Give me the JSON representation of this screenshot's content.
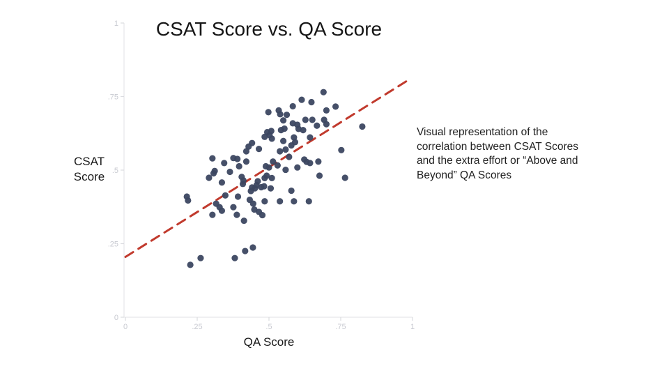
{
  "chart_data": {
    "type": "scatter",
    "title": "CSAT Score vs. QA Score",
    "xlabel": "QA Score",
    "ylabel": "CSAT Score",
    "ylabel_display": "CSAT\nScore",
    "annotation": "Visual representation of the\ncorrelation between CSAT Scores\nand the extra effort or “Above and\nBeyond” QA Scores",
    "xlim": [
      0,
      1
    ],
    "ylim": [
      0,
      1
    ],
    "grid": false,
    "legend": null,
    "x_ticks": {
      "values": [
        0,
        0.25,
        0.5,
        0.75,
        1
      ],
      "labels": [
        "0",
        ".25",
        ".5",
        ".75",
        "1"
      ]
    },
    "y_ticks": {
      "values": [
        0,
        0.25,
        0.5,
        0.75,
        1
      ],
      "labels": [
        "0",
        ".25",
        ".5",
        ".75",
        "1"
      ]
    },
    "colors": {
      "point": "#3c4761",
      "trend": "#c13a2d",
      "axis": "#e6e6ea",
      "tick": "#dadbe0",
      "tick_label": "#c8cad1"
    },
    "points": [
      [
        0.69,
        0.765
      ],
      [
        0.614,
        0.739
      ],
      [
        0.648,
        0.731
      ],
      [
        0.583,
        0.717
      ],
      [
        0.498,
        0.697
      ],
      [
        0.534,
        0.703
      ],
      [
        0.539,
        0.69
      ],
      [
        0.732,
        0.716
      ],
      [
        0.7,
        0.703
      ],
      [
        0.562,
        0.688
      ],
      [
        0.627,
        0.671
      ],
      [
        0.651,
        0.671
      ],
      [
        0.692,
        0.671
      ],
      [
        0.55,
        0.669
      ],
      [
        0.583,
        0.659
      ],
      [
        0.599,
        0.654
      ],
      [
        0.667,
        0.651
      ],
      [
        0.7,
        0.656
      ],
      [
        0.825,
        0.648
      ],
      [
        0.542,
        0.636
      ],
      [
        0.603,
        0.64
      ],
      [
        0.619,
        0.636
      ],
      [
        0.554,
        0.641
      ],
      [
        0.494,
        0.629
      ],
      [
        0.508,
        0.633
      ],
      [
        0.502,
        0.619
      ],
      [
        0.485,
        0.613
      ],
      [
        0.51,
        0.607
      ],
      [
        0.643,
        0.611
      ],
      [
        0.55,
        0.599
      ],
      [
        0.587,
        0.611
      ],
      [
        0.591,
        0.595
      ],
      [
        0.441,
        0.592
      ],
      [
        0.429,
        0.58
      ],
      [
        0.465,
        0.572
      ],
      [
        0.421,
        0.564
      ],
      [
        0.538,
        0.564
      ],
      [
        0.558,
        0.57
      ],
      [
        0.57,
        0.545
      ],
      [
        0.578,
        0.584
      ],
      [
        0.752,
        0.568
      ],
      [
        0.303,
        0.54
      ],
      [
        0.344,
        0.524
      ],
      [
        0.376,
        0.541
      ],
      [
        0.39,
        0.538
      ],
      [
        0.396,
        0.513
      ],
      [
        0.421,
        0.529
      ],
      [
        0.514,
        0.529
      ],
      [
        0.53,
        0.516
      ],
      [
        0.489,
        0.513
      ],
      [
        0.5,
        0.509
      ],
      [
        0.558,
        0.501
      ],
      [
        0.599,
        0.509
      ],
      [
        0.623,
        0.536
      ],
      [
        0.631,
        0.528
      ],
      [
        0.643,
        0.524
      ],
      [
        0.672,
        0.529
      ],
      [
        0.311,
        0.497
      ],
      [
        0.291,
        0.474
      ],
      [
        0.307,
        0.489
      ],
      [
        0.364,
        0.494
      ],
      [
        0.336,
        0.458
      ],
      [
        0.405,
        0.477
      ],
      [
        0.411,
        0.465
      ],
      [
        0.409,
        0.453
      ],
      [
        0.492,
        0.481
      ],
      [
        0.485,
        0.473
      ],
      [
        0.51,
        0.473
      ],
      [
        0.676,
        0.481
      ],
      [
        0.765,
        0.474
      ],
      [
        0.461,
        0.462
      ],
      [
        0.457,
        0.449
      ],
      [
        0.441,
        0.441
      ],
      [
        0.451,
        0.438
      ],
      [
        0.437,
        0.429
      ],
      [
        0.473,
        0.442
      ],
      [
        0.483,
        0.445
      ],
      [
        0.506,
        0.438
      ],
      [
        0.578,
        0.43
      ],
      [
        0.214,
        0.41
      ],
      [
        0.218,
        0.397
      ],
      [
        0.348,
        0.414
      ],
      [
        0.392,
        0.41
      ],
      [
        0.433,
        0.399
      ],
      [
        0.445,
        0.386
      ],
      [
        0.485,
        0.394
      ],
      [
        0.538,
        0.394
      ],
      [
        0.587,
        0.394
      ],
      [
        0.639,
        0.394
      ],
      [
        0.316,
        0.386
      ],
      [
        0.328,
        0.374
      ],
      [
        0.336,
        0.362
      ],
      [
        0.376,
        0.374
      ],
      [
        0.388,
        0.348
      ],
      [
        0.449,
        0.366
      ],
      [
        0.465,
        0.358
      ],
      [
        0.477,
        0.347
      ],
      [
        0.303,
        0.348
      ],
      [
        0.413,
        0.328
      ],
      [
        0.444,
        0.237
      ],
      [
        0.417,
        0.225
      ],
      [
        0.381,
        0.201
      ],
      [
        0.262,
        0.201
      ],
      [
        0.226,
        0.178
      ]
    ],
    "trend_line": {
      "style": "dashed",
      "from": [
        0.0,
        0.205
      ],
      "to": [
        0.995,
        0.812
      ]
    }
  }
}
